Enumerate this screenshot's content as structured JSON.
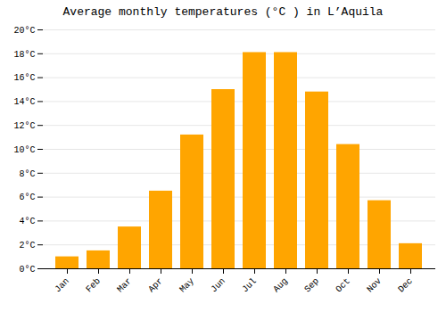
{
  "chart_data": {
    "type": "bar",
    "title": "Average monthly temperatures (°C ) in L’Aquila",
    "categories": [
      "Jan",
      "Feb",
      "Mar",
      "Apr",
      "May",
      "Jun",
      "Jul",
      "Aug",
      "Sep",
      "Oct",
      "Nov",
      "Dec"
    ],
    "values": [
      1.0,
      1.5,
      3.5,
      6.5,
      11.2,
      15.0,
      18.1,
      18.1,
      14.8,
      10.4,
      5.7,
      2.1
    ],
    "color": "#FFA500",
    "ylim": [
      0,
      20
    ],
    "yticks": [
      {
        "value": 0,
        "label": "0°C"
      },
      {
        "value": 2,
        "label": "2°C"
      },
      {
        "value": 4,
        "label": "4°C"
      },
      {
        "value": 6,
        "label": "6°C"
      },
      {
        "value": 8,
        "label": "8°C"
      },
      {
        "value": 10,
        "label": "10°C"
      },
      {
        "value": 12,
        "label": "12°C"
      },
      {
        "value": 14,
        "label": "14°C"
      },
      {
        "value": 16,
        "label": "16°C"
      },
      {
        "value": 18,
        "label": "18°C"
      },
      {
        "value": 20,
        "label": "20°C"
      }
    ],
    "grid": true
  }
}
